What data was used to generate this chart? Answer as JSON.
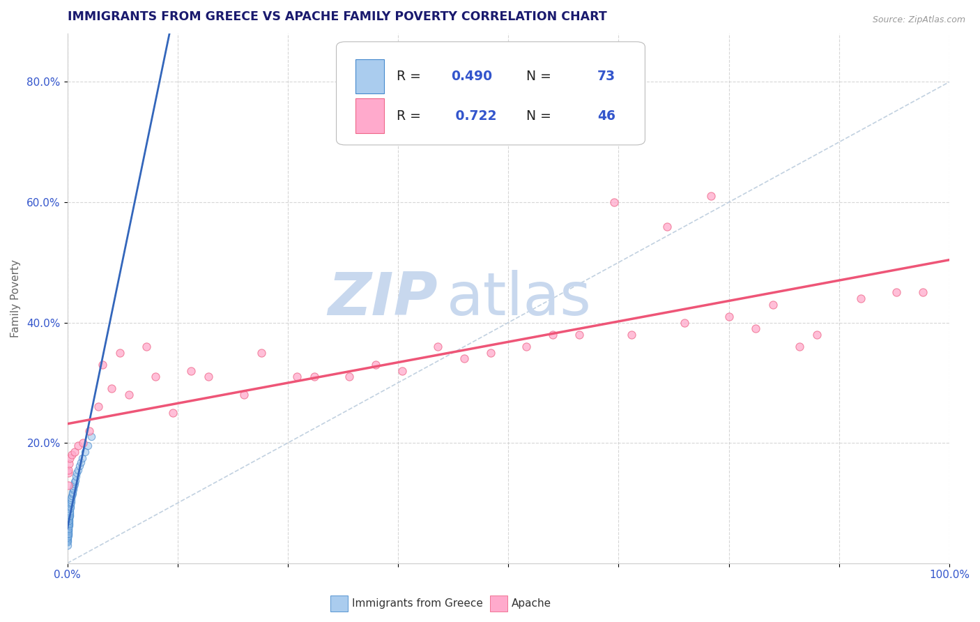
{
  "title": "IMMIGRANTS FROM GREECE VS APACHE FAMILY POVERTY CORRELATION CHART",
  "source": "Source: ZipAtlas.com",
  "ylabel": "Family Poverty",
  "legend_label1": "Immigrants from Greece",
  "legend_label2": "Apache",
  "r1": 0.49,
  "n1": 73,
  "r2": 0.722,
  "n2": 46,
  "color1_fill": "#aaccee",
  "color1_edge": "#4488cc",
  "color2_fill": "#ffaacc",
  "color2_edge": "#ee6688",
  "trend1_color": "#3366bb",
  "trend2_color": "#ee5577",
  "diagonal_color": "#bbccdd",
  "background_color": "#ffffff",
  "watermark_zip": "ZIP",
  "watermark_atlas": "atlas",
  "watermark_color_zip": "#c8d8ee",
  "watermark_color_atlas": "#c8d8ee",
  "title_color": "#1a1a6e",
  "value_color": "#3355cc",
  "legend_text_color": "#222222",
  "ytick_labels": [
    "20.0%",
    "40.0%",
    "60.0%",
    "80.0%"
  ],
  "ytick_values": [
    0.2,
    0.4,
    0.6,
    0.8
  ],
  "xlim": [
    0.0,
    1.0
  ],
  "ylim": [
    0.0,
    0.88
  ],
  "greece_x": [
    0.0002,
    0.0002,
    0.0002,
    0.0003,
    0.0003,
    0.0003,
    0.0004,
    0.0004,
    0.0004,
    0.0005,
    0.0005,
    0.0005,
    0.0006,
    0.0006,
    0.0007,
    0.0007,
    0.0008,
    0.0008,
    0.0009,
    0.0009,
    0.001,
    0.001,
    0.001,
    0.001,
    0.0011,
    0.0011,
    0.0012,
    0.0012,
    0.0013,
    0.0013,
    0.0014,
    0.0015,
    0.0015,
    0.0016,
    0.0017,
    0.0018,
    0.0018,
    0.0019,
    0.002,
    0.0021,
    0.0022,
    0.0023,
    0.0024,
    0.0025,
    0.0026,
    0.0027,
    0.0028,
    0.003,
    0.0032,
    0.0034,
    0.0036,
    0.0038,
    0.004,
    0.0043,
    0.0046,
    0.005,
    0.0055,
    0.006,
    0.0065,
    0.007,
    0.0075,
    0.008,
    0.0085,
    0.009,
    0.01,
    0.011,
    0.012,
    0.0135,
    0.015,
    0.017,
    0.02,
    0.023,
    0.027
  ],
  "greece_y": [
    0.03,
    0.045,
    0.06,
    0.035,
    0.05,
    0.065,
    0.038,
    0.052,
    0.068,
    0.04,
    0.055,
    0.07,
    0.042,
    0.058,
    0.044,
    0.06,
    0.046,
    0.062,
    0.048,
    0.064,
    0.05,
    0.055,
    0.065,
    0.075,
    0.052,
    0.068,
    0.054,
    0.07,
    0.056,
    0.072,
    0.058,
    0.06,
    0.074,
    0.062,
    0.064,
    0.066,
    0.076,
    0.068,
    0.07,
    0.072,
    0.074,
    0.076,
    0.078,
    0.08,
    0.082,
    0.084,
    0.086,
    0.09,
    0.092,
    0.095,
    0.098,
    0.1,
    0.102,
    0.105,
    0.108,
    0.112,
    0.115,
    0.118,
    0.122,
    0.125,
    0.128,
    0.132,
    0.135,
    0.138,
    0.145,
    0.15,
    0.155,
    0.162,
    0.168,
    0.175,
    0.185,
    0.195,
    0.21
  ],
  "apache_x": [
    0.0008,
    0.001,
    0.0015,
    0.002,
    0.003,
    0.005,
    0.008,
    0.012,
    0.018,
    0.025,
    0.035,
    0.05,
    0.07,
    0.1,
    0.14,
    0.2,
    0.26,
    0.32,
    0.38,
    0.45,
    0.52,
    0.58,
    0.64,
    0.7,
    0.75,
    0.8,
    0.85,
    0.9,
    0.94,
    0.97,
    0.04,
    0.06,
    0.09,
    0.12,
    0.16,
    0.22,
    0.28,
    0.35,
    0.42,
    0.48,
    0.55,
    0.62,
    0.68,
    0.73,
    0.78,
    0.83
  ],
  "apache_y": [
    0.13,
    0.15,
    0.155,
    0.165,
    0.175,
    0.18,
    0.185,
    0.195,
    0.2,
    0.22,
    0.26,
    0.29,
    0.28,
    0.31,
    0.32,
    0.28,
    0.31,
    0.31,
    0.32,
    0.34,
    0.36,
    0.38,
    0.38,
    0.4,
    0.41,
    0.43,
    0.38,
    0.44,
    0.45,
    0.45,
    0.33,
    0.35,
    0.36,
    0.25,
    0.31,
    0.35,
    0.31,
    0.33,
    0.36,
    0.35,
    0.38,
    0.6,
    0.56,
    0.61,
    0.39,
    0.36
  ]
}
